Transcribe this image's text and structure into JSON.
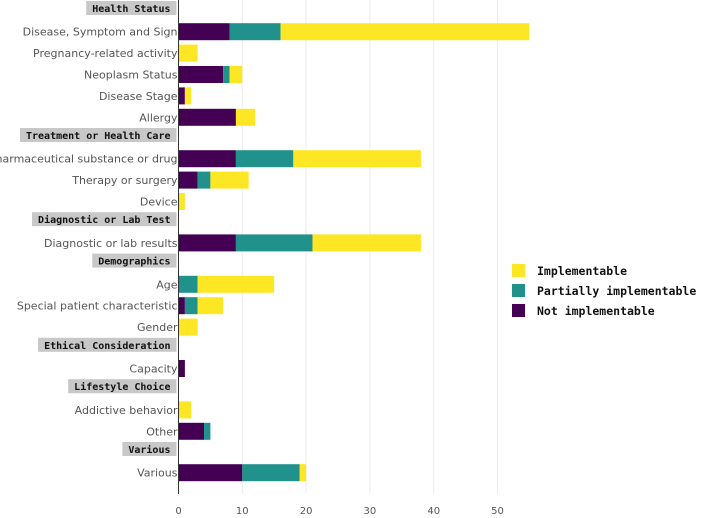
{
  "chart_data": {
    "type": "bar",
    "orientation": "horizontal",
    "stacked": true,
    "groups": [
      {
        "label": "Health Status",
        "categories": [
          {
            "name": "Disease, Symptom and Sign",
            "values": [
              8,
              8,
              39
            ]
          },
          {
            "name": "Pregnancy-related activity",
            "values": [
              0,
              0,
              3
            ]
          },
          {
            "name": "Neoplasm Status",
            "values": [
              7,
              1,
              2
            ]
          },
          {
            "name": "Disease Stage",
            "values": [
              1,
              0,
              1
            ]
          },
          {
            "name": "Allergy",
            "values": [
              9,
              0,
              3
            ]
          }
        ]
      },
      {
        "label": "Treatment or Health Care",
        "categories": [
          {
            "name": "Pharmaceutical substance or drug",
            "values": [
              9,
              9,
              20
            ]
          },
          {
            "name": "Therapy or surgery",
            "values": [
              3,
              2,
              6
            ]
          },
          {
            "name": "Device",
            "values": [
              0,
              0,
              1
            ]
          }
        ]
      },
      {
        "label": "Diagnostic or Lab Test",
        "categories": [
          {
            "name": "Diagnostic or lab results",
            "values": [
              9,
              12,
              17
            ]
          }
        ]
      },
      {
        "label": "Demographics",
        "categories": [
          {
            "name": "Age",
            "values": [
              0,
              3,
              12
            ]
          },
          {
            "name": "Special patient characteristic",
            "values": [
              1,
              2,
              4
            ]
          },
          {
            "name": "Gender",
            "values": [
              0,
              0,
              3
            ]
          }
        ]
      },
      {
        "label": "Ethical Consideration",
        "categories": [
          {
            "name": "Capacity",
            "values": [
              1,
              0,
              0
            ]
          }
        ]
      },
      {
        "label": "Lifestyle Choice",
        "categories": [
          {
            "name": "Addictive behavior",
            "values": [
              0,
              0,
              2
            ]
          },
          {
            "name": "Other",
            "values": [
              4,
              1,
              0
            ]
          }
        ]
      },
      {
        "label": "Various",
        "categories": [
          {
            "name": "Various",
            "values": [
              10,
              9,
              1
            ]
          }
        ]
      }
    ],
    "series": [
      {
        "name": "Not implementable",
        "color": "#440154"
      },
      {
        "name": "Partially implementable",
        "color": "#21918c"
      },
      {
        "name": "Implementable",
        "color": "#fde725"
      }
    ],
    "legend_order": [
      "Implementable",
      "Partially implementable",
      "Not implementable"
    ],
    "x_ticks": [
      0,
      10,
      20,
      30,
      40,
      50
    ],
    "xlim": [
      0,
      58
    ],
    "grid": true,
    "legend_position": "right"
  }
}
